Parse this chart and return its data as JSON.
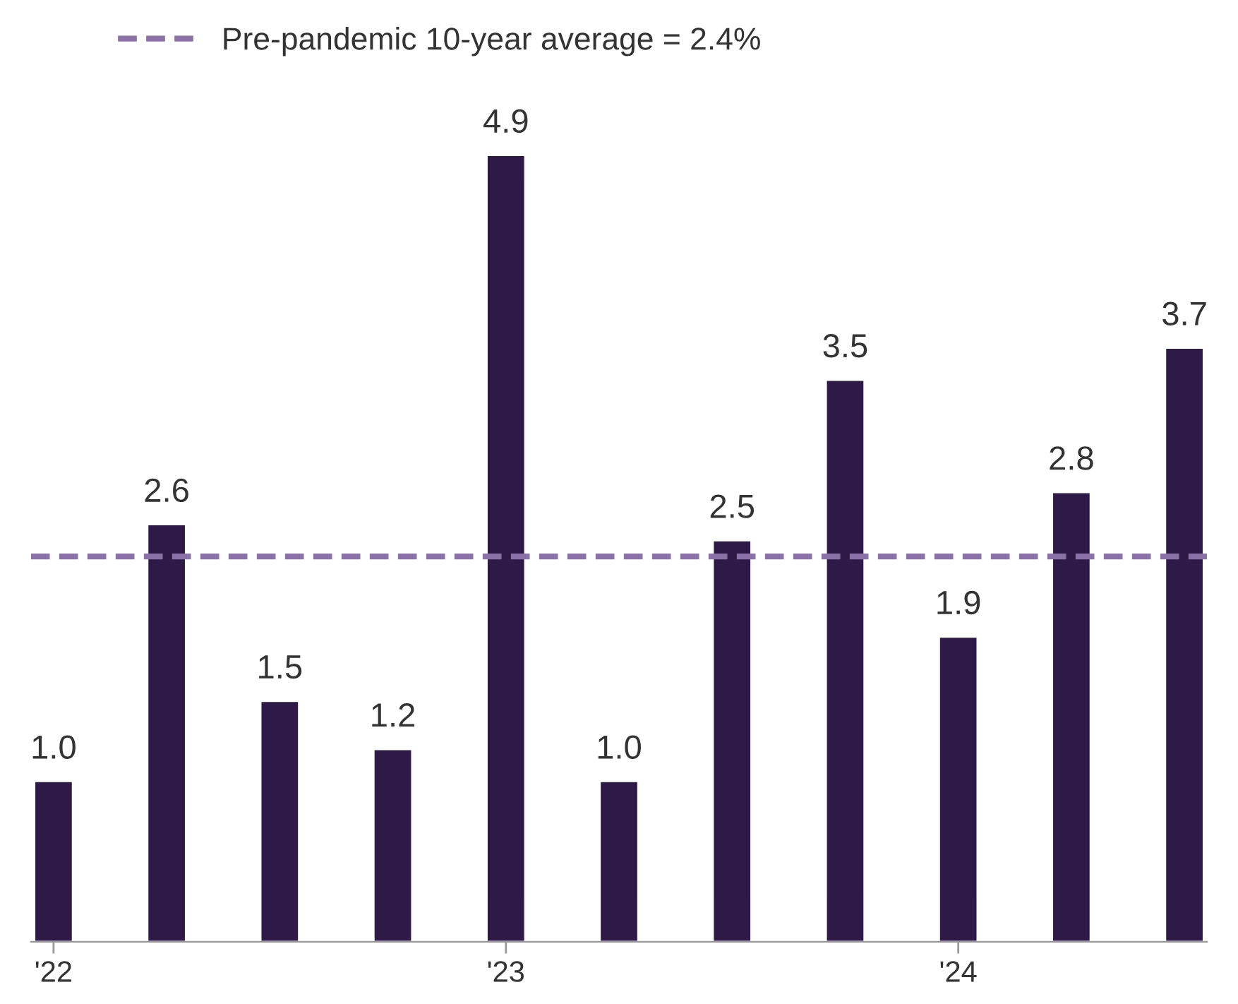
{
  "chart_data": {
    "type": "bar",
    "categories": [
      "'22",
      null,
      null,
      null,
      "'23",
      null,
      null,
      null,
      "'24",
      null,
      null
    ],
    "values": [
      1.0,
      2.6,
      1.5,
      1.2,
      4.9,
      1.0,
      2.5,
      3.5,
      1.9,
      2.8,
      3.7
    ],
    "color": "#2e1a47",
    "value_labels": [
      "1.0",
      "2.6",
      "1.5",
      "1.2",
      "4.9",
      "1.0",
      "2.5",
      "3.5",
      "1.9",
      "2.8",
      "3.7"
    ],
    "ref_lines": [
      {
        "axis": "y",
        "value": 2.4,
        "label": "Pre-pandemic 10-year average = 2.4%",
        "color": "#8a72a6",
        "line_style": "dashed"
      }
    ],
    "legend": "top left",
    "grid": false
  }
}
